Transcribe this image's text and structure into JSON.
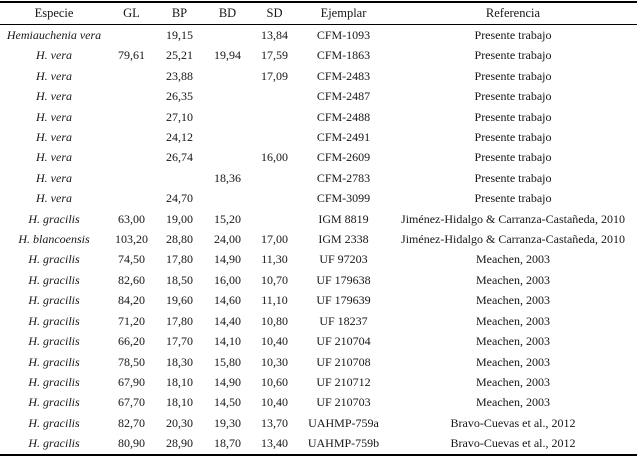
{
  "table": {
    "columns": [
      {
        "key": "especie",
        "label": "Especie"
      },
      {
        "key": "gl",
        "label": "GL"
      },
      {
        "key": "bp",
        "label": "BP"
      },
      {
        "key": "bd",
        "label": "BD"
      },
      {
        "key": "sd",
        "label": "SD"
      },
      {
        "key": "ejemplar",
        "label": "Ejemplar"
      },
      {
        "key": "referencia",
        "label": "Referencia"
      }
    ],
    "rows": [
      [
        "Hemiauchenia vera",
        "",
        "19,15",
        "",
        "13,84",
        "CFM-1093",
        "Presente trabajo"
      ],
      [
        "H. vera",
        "79,61",
        "25,21",
        "19,94",
        "17,59",
        "CFM-1863",
        "Presente trabajo"
      ],
      [
        "H. vera",
        "",
        "23,88",
        "",
        "17,09",
        "CFM-2483",
        "Presente trabajo"
      ],
      [
        "H. vera",
        "",
        "26,35",
        "",
        "",
        "CFM-2487",
        "Presente trabajo"
      ],
      [
        "H. vera",
        "",
        "27,10",
        "",
        "",
        "CFM-2488",
        "Presente trabajo"
      ],
      [
        "H. vera",
        "",
        "24,12",
        "",
        "",
        "CFM-2491",
        "Presente trabajo"
      ],
      [
        "H. vera",
        "",
        "26,74",
        "",
        "16,00",
        "CFM-2609",
        "Presente trabajo"
      ],
      [
        "H. vera",
        "",
        "",
        "18,36",
        "",
        "CFM-2783",
        "Presente trabajo"
      ],
      [
        "H. vera",
        "",
        "24,70",
        "",
        "",
        "CFM-3099",
        "Presente trabajo"
      ],
      [
        "H. gracilis",
        "63,00",
        "19,00",
        "15,20",
        "",
        "IGM 8819",
        "Jiménez-Hidalgo & Carranza-Castañeda, 2010"
      ],
      [
        "H. blancoensis",
        "103,20",
        "28,80",
        "24,00",
        "17,00",
        "IGM 2338",
        "Jiménez-Hidalgo & Carranza-Castañeda, 2010"
      ],
      [
        "H. gracilis",
        "74,50",
        "17,80",
        "14,90",
        "11,30",
        "UF 97203",
        "Meachen, 2003"
      ],
      [
        "H. gracilis",
        "82,60",
        "18,50",
        "16,00",
        "10,70",
        "UF 179638",
        "Meachen, 2003"
      ],
      [
        "H. gracilis",
        "84,20",
        "19,60",
        "14,60",
        "11,10",
        "UF 179639",
        "Meachen, 2003"
      ],
      [
        "H. gracilis",
        "71,20",
        "17,80",
        "14,40",
        "10,80",
        "UF 18237",
        "Meachen, 2003"
      ],
      [
        "H. gracilis",
        "66,20",
        "17,70",
        "14,10",
        "10,40",
        "UF 210704",
        "Meachen, 2003"
      ],
      [
        "H. gracilis",
        "78,50",
        "18,30",
        "15,80",
        "10,30",
        "UF 210708",
        "Meachen, 2003"
      ],
      [
        "H. gracilis",
        "67,90",
        "18,10",
        "14,90",
        "10,60",
        "UF 210712",
        "Meachen, 2003"
      ],
      [
        "H. gracilis",
        "67,70",
        "18,10",
        "14,50",
        "10,40",
        "UF 210703",
        "Meachen, 2003"
      ],
      [
        "H. gracilis",
        "82,70",
        "20,30",
        "19,30",
        "13,70",
        "UAHMP-759a",
        "Bravo-Cuevas et al., 2012"
      ],
      [
        "H. gracilis",
        "80,90",
        "28,90",
        "18,70",
        "13,40",
        "UAHMP-759b",
        "Bravo-Cuevas et al., 2012"
      ]
    ],
    "text_color": "#161616",
    "rule_color": "#000000"
  }
}
